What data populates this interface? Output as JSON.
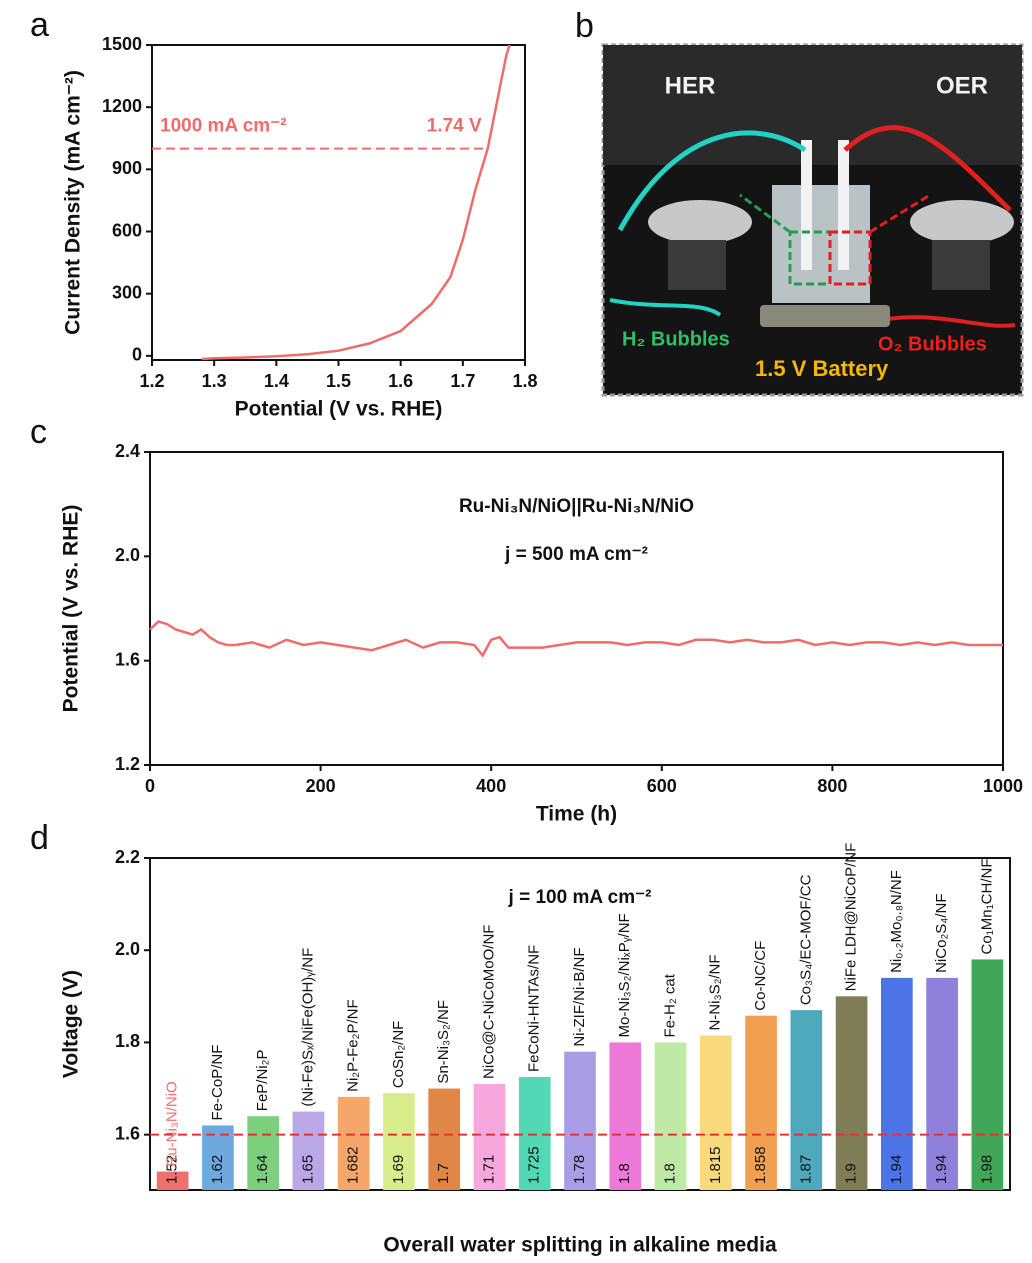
{
  "chart_data": [
    {
      "type": "line",
      "panel": "a",
      "x_label": "Potential (V vs. RHE)",
      "y_label": "Current Density (mA cm⁻²)",
      "x": [
        1.28,
        1.3,
        1.35,
        1.4,
        1.45,
        1.5,
        1.55,
        1.6,
        1.65,
        1.68,
        1.7,
        1.72,
        1.74,
        1.75,
        1.76,
        1.77,
        1.775
      ],
      "values": [
        -15,
        -12,
        -8,
        -2,
        8,
        25,
        60,
        120,
        250,
        380,
        560,
        800,
        1000,
        1150,
        1300,
        1450,
        1500
      ],
      "color": "#f06b6b",
      "xlim": [
        1.2,
        1.8
      ],
      "ylim": [
        -20,
        1500
      ],
      "xticks": [
        1.2,
        1.3,
        1.4,
        1.5,
        1.6,
        1.7,
        1.8
      ],
      "yticks": [
        0,
        300,
        600,
        900,
        1200,
        1500
      ],
      "annotations": [
        "1000 mA cm⁻²",
        "1.74 V"
      ],
      "reference": {
        "y": 1000,
        "x": 1.74
      }
    },
    {
      "type": "line",
      "panel": "c",
      "x_label": "Time (h)",
      "y_label": "Potential (V vs. RHE)",
      "x": [
        0,
        10,
        20,
        30,
        40,
        50,
        60,
        70,
        80,
        90,
        100,
        120,
        140,
        160,
        180,
        200,
        220,
        240,
        260,
        280,
        300,
        320,
        340,
        360,
        380,
        390,
        400,
        410,
        420,
        440,
        460,
        480,
        500,
        520,
        540,
        560,
        580,
        600,
        620,
        640,
        660,
        680,
        700,
        720,
        740,
        760,
        780,
        800,
        820,
        840,
        860,
        880,
        900,
        920,
        940,
        960,
        980,
        1000
      ],
      "values": [
        1.72,
        1.75,
        1.74,
        1.72,
        1.71,
        1.7,
        1.72,
        1.69,
        1.67,
        1.66,
        1.66,
        1.67,
        1.65,
        1.68,
        1.66,
        1.67,
        1.66,
        1.65,
        1.64,
        1.66,
        1.68,
        1.65,
        1.67,
        1.67,
        1.66,
        1.62,
        1.68,
        1.69,
        1.65,
        1.65,
        1.65,
        1.66,
        1.67,
        1.67,
        1.67,
        1.66,
        1.67,
        1.67,
        1.66,
        1.68,
        1.68,
        1.67,
        1.68,
        1.67,
        1.67,
        1.68,
        1.66,
        1.67,
        1.66,
        1.67,
        1.67,
        1.66,
        1.67,
        1.66,
        1.67,
        1.66,
        1.66,
        1.66
      ],
      "color": "#f06b6b",
      "xlim": [
        0,
        1000
      ],
      "ylim": [
        1.2,
        2.4
      ],
      "xticks": [
        0,
        200,
        400,
        600,
        800,
        1000
      ],
      "yticks": [
        1.2,
        1.6,
        {
          "value": 2,
          "label": "2.0"
        },
        2.4
      ],
      "annotations": [
        "Ru-Ni₃N/NiO||Ru-Ni₃N/NiO",
        "j = 500 mA cm⁻²"
      ]
    },
    {
      "type": "bar",
      "panel": "d",
      "x_label": "Overall water splitting in alkaline media",
      "y_label": "Voltage (V)",
      "categories": [
        "Ru-Ni₃N/NiO",
        "Fe-CoP/NF",
        "FeP/Ni₂P",
        "(Ni-Fe)Sₓ/NiFe(OH)ᵧ/NF",
        "Ni₂P-Fe₂P/NF",
        "CoSn₂/NF",
        "Sn-Ni₃S₂/NF",
        "NiCo@C-NiCoMoO/NF",
        "FeCoNi-HNTAs/NF",
        "Ni-ZIF/Ni-B/NF",
        "Mo-Ni₃S₂/NiₓPᵧ/NF",
        "Fe-H₂ cat",
        "N-Ni₃S₂/NF",
        "Co-NC/CF",
        "Co₃S₄/EC-MOF/CC",
        "NiFe LDH@NiCoP/NF",
        "Ni₀.₂Mo₀.₈N/NF",
        "NiCo₂S₄/NF",
        "Co₁Mn₁CH/NF"
      ],
      "values": [
        1.52,
        1.62,
        1.64,
        1.65,
        1.682,
        1.69,
        1.7,
        1.71,
        1.725,
        1.78,
        1.8,
        1.8,
        1.815,
        1.858,
        1.87,
        1.9,
        1.94,
        1.94,
        1.98
      ],
      "colors": [
        "#f07070",
        "#6fa8dc",
        "#7ccf7c",
        "#b9a7e6",
        "#f5a66a",
        "#d9ec8c",
        "#e08748",
        "#f6a8dc",
        "#52d8b4",
        "#a99de6",
        "#ec78d8",
        "#bfeaa6",
        "#f8d97c",
        "#f0a050",
        "#4fa9bd",
        "#7f7d55",
        "#4d74e6",
        "#8f80dc",
        "#41a658"
      ],
      "ylim": [
        1.48,
        2.2
      ],
      "yticks": [
        1.6,
        1.8,
        {
          "value": 2,
          "label": "2.0"
        },
        2.2
      ],
      "annotations": [
        "j = 100 mA cm⁻²"
      ],
      "reference": {
        "y": 1.6
      }
    }
  ],
  "photo": {
    "panel": "b",
    "labels": [
      "HER",
      "OER",
      "H₂ Bubbles",
      "O₂ Bubbles",
      "1.5 V Battery"
    ]
  }
}
